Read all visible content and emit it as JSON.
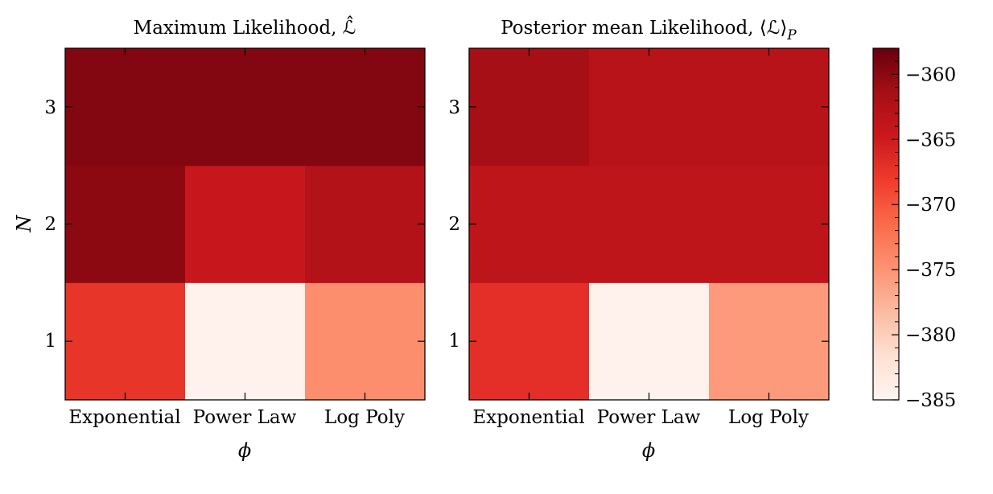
{
  "chart_data": [
    {
      "type": "heatmap",
      "title": "Maximum Likelihood, ℒ̂",
      "xlabel": "ϕ",
      "ylabel": "N",
      "x_categories": [
        "Exponential",
        "Power Law",
        "Log Poly"
      ],
      "y_categories": [
        "1",
        "2",
        "3"
      ],
      "values": [
        [
          -367.5,
          -384.5,
          -374.5
        ],
        [
          -360.0,
          -364.5,
          -362.5
        ],
        [
          -359.5,
          -359.5,
          -359.5
        ]
      ]
    },
    {
      "type": "heatmap",
      "title": "Posterior mean Likelihood, ⟨ℒ⟩",
      "title_subscript": "P",
      "xlabel": "ϕ",
      "ylabel": "",
      "x_categories": [
        "Exponential",
        "Power Law",
        "Log Poly"
      ],
      "y_categories": [
        "1",
        "2",
        "3"
      ],
      "values": [
        [
          -367.0,
          -384.5,
          -375.5
        ],
        [
          -363.5,
          -363.5,
          -363.5
        ],
        [
          -361.5,
          -363.0,
          -363.0
        ]
      ]
    }
  ],
  "colorbar": {
    "vmin": -385,
    "vmax": -358,
    "ticks": [
      -360,
      -365,
      -370,
      -375,
      -380,
      -385
    ],
    "tick_labels": [
      "−360",
      "−365",
      "−370",
      "−375",
      "−380",
      "−385"
    ],
    "colormap": "Reds",
    "colors": [
      "#fff5f0",
      "#fee0d2",
      "#fcbba1",
      "#fc9272",
      "#fb6a4a",
      "#ef3b2c",
      "#cb181d",
      "#a50f15",
      "#67000d"
    ]
  }
}
